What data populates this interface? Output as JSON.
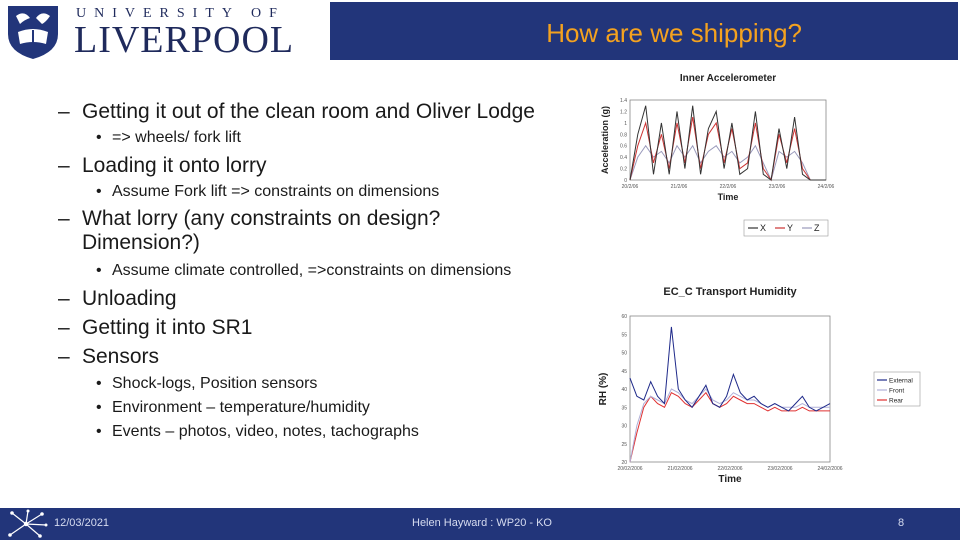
{
  "header": {
    "university_line": "UNIVERSITY OF",
    "liverpool_line": "LIVERPOOL",
    "title": "How are we shipping?"
  },
  "bullets": [
    {
      "level": 1,
      "mark": "–",
      "text": "Getting it out of the clean room and Oliver Lodge"
    },
    {
      "level": 2,
      "mark": "•",
      "text": "=>  wheels/ fork lift"
    },
    {
      "level": 1,
      "mark": "–",
      "text": "Loading it onto lorry"
    },
    {
      "level": 2,
      "mark": "•",
      "text": "Assume Fork lift => constraints on dimensions"
    },
    {
      "level": 1,
      "mark": "–",
      "text": "What lorry (any constraints on design? Dimension?)"
    },
    {
      "level": 2,
      "mark": "•",
      "text": "Assume climate controlled, =>constraints on dimensions"
    },
    {
      "level": 1,
      "mark": "–",
      "text": "Unloading"
    },
    {
      "level": 1,
      "mark": "–",
      "text": "Getting it into SR1"
    },
    {
      "level": 1,
      "mark": "–",
      "text": "Sensors"
    },
    {
      "level": 2,
      "mark": "•",
      "text": "Shock-logs, Position sensors"
    },
    {
      "level": 2,
      "mark": "•",
      "text": "Environment – temperature/humidity"
    },
    {
      "level": 2,
      "mark": "•",
      "text": "Events – photos, video, notes, tachographs"
    }
  ],
  "footer": {
    "date": "12/03/2021",
    "center": "Helen Hayward : WP20 - KO",
    "page": "8"
  },
  "colors": {
    "band": "#22357a",
    "title": "#f4a21f",
    "series_x": "#333333",
    "series_y": "#cc3333",
    "series_z": "#9999bb",
    "external": "#1f2a8a",
    "front": "#b0b0d8",
    "rear": "#e03030"
  },
  "chart_data": [
    {
      "type": "line",
      "title": "Inner Accelerometer",
      "xlabel": "Time",
      "ylabel": "Acceleration (g)",
      "x_ticks": [
        "20/2/06",
        "21/2/06",
        "22/2/06",
        "23/2/06",
        "24/2/06"
      ],
      "y_ticks": [
        "0",
        "0.2",
        "0.4",
        "0.6",
        "0.8",
        "1",
        "1.2",
        "1.4"
      ],
      "ylim": [
        0,
        1.4
      ],
      "legend": [
        "X",
        "Y",
        "Z"
      ],
      "series": [
        {
          "name": "X",
          "values": [
            0.0,
            0.8,
            1.3,
            0.1,
            1.0,
            0.1,
            1.2,
            0.2,
            1.3,
            0.1,
            0.9,
            1.2,
            0.2,
            1.0,
            0.1,
            0.2,
            1.2,
            0.1,
            0.0,
            0.9,
            0.2,
            1.1,
            0.1,
            0.0,
            0.0,
            0.0
          ]
        },
        {
          "name": "Y",
          "values": [
            0.0,
            0.6,
            1.0,
            0.3,
            0.8,
            0.2,
            1.0,
            0.3,
            1.1,
            0.2,
            0.8,
            1.0,
            0.3,
            0.9,
            0.2,
            0.3,
            1.0,
            0.2,
            0.0,
            0.8,
            0.3,
            0.9,
            0.2,
            0.0,
            0.0,
            0.0
          ]
        },
        {
          "name": "Z",
          "values": [
            0.0,
            0.4,
            0.6,
            0.4,
            0.5,
            0.3,
            0.6,
            0.4,
            0.6,
            0.3,
            0.5,
            0.6,
            0.4,
            0.5,
            0.3,
            0.4,
            0.6,
            0.3,
            0.0,
            0.5,
            0.4,
            0.5,
            0.3,
            0.0,
            0.0,
            0.0
          ]
        }
      ]
    },
    {
      "type": "line",
      "title": "EC_C Transport Humidity",
      "xlabel": "Time",
      "ylabel": "RH (%)",
      "x_ticks": [
        "20/02/2006",
        "21/02/2006",
        "22/02/2006",
        "23/02/2006",
        "24/02/2006"
      ],
      "y_ticks": [
        "20",
        "25",
        "30",
        "35",
        "40",
        "45",
        "50",
        "55",
        "60"
      ],
      "ylim": [
        20,
        60
      ],
      "legend": [
        "External",
        "Front",
        "Rear"
      ],
      "series": [
        {
          "name": "External",
          "values": [
            43,
            38,
            37,
            42,
            38,
            36,
            57,
            40,
            37,
            35,
            38,
            41,
            36,
            35,
            38,
            44,
            39,
            37,
            38,
            36,
            35,
            36,
            35,
            34,
            36,
            38,
            35,
            34,
            35,
            36
          ]
        },
        {
          "name": "Front",
          "values": [
            20,
            30,
            36,
            38,
            37,
            36,
            40,
            39,
            37,
            36,
            38,
            40,
            37,
            36,
            37,
            39,
            38,
            37,
            37,
            36,
            35,
            36,
            35,
            35,
            35,
            36,
            35,
            35,
            35,
            35
          ]
        },
        {
          "name": "Rear",
          "values": [
            20,
            28,
            35,
            38,
            36,
            35,
            39,
            38,
            36,
            35,
            37,
            39,
            36,
            35,
            36,
            38,
            37,
            36,
            36,
            35,
            34,
            35,
            34,
            34,
            34,
            35,
            34,
            34,
            34,
            34
          ]
        }
      ]
    }
  ]
}
